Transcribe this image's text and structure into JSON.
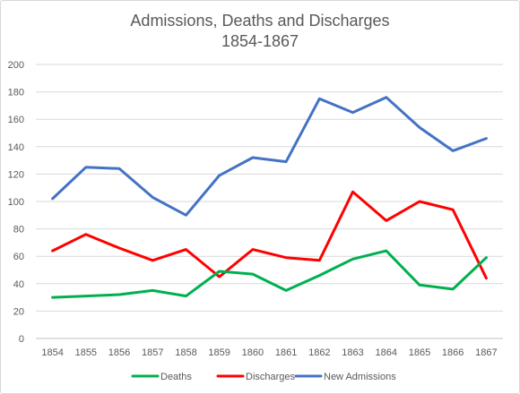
{
  "chart_data": {
    "type": "line",
    "title": "Admissions, Deaths and Discharges",
    "subtitle": "1854-1867",
    "xlabel": "",
    "ylabel": "",
    "categories": [
      "1854",
      "1855",
      "1856",
      "1857",
      "1858",
      "1859",
      "1860",
      "1861",
      "1862",
      "1863",
      "1864",
      "1865",
      "1866",
      "1867"
    ],
    "ylim": [
      0,
      200
    ],
    "yticks": [
      "0",
      "20",
      "40",
      "60",
      "80",
      "100",
      "120",
      "140",
      "160",
      "180",
      "200"
    ],
    "grid": true,
    "legend_position": "bottom",
    "series": [
      {
        "name": "Deaths",
        "color": "#00b050",
        "values": [
          30,
          31,
          32,
          35,
          31,
          49,
          47,
          35,
          46,
          58,
          64,
          39,
          36,
          59
        ]
      },
      {
        "name": "Discharges",
        "color": "#ff0000",
        "values": [
          64,
          76,
          66,
          57,
          65,
          45,
          65,
          59,
          57,
          107,
          86,
          100,
          94,
          44
        ]
      },
      {
        "name": "New Admissions",
        "color": "#4472c4",
        "values": [
          102,
          125,
          124,
          103,
          90,
          119,
          132,
          129,
          175,
          165,
          176,
          154,
          137,
          146
        ]
      }
    ]
  }
}
